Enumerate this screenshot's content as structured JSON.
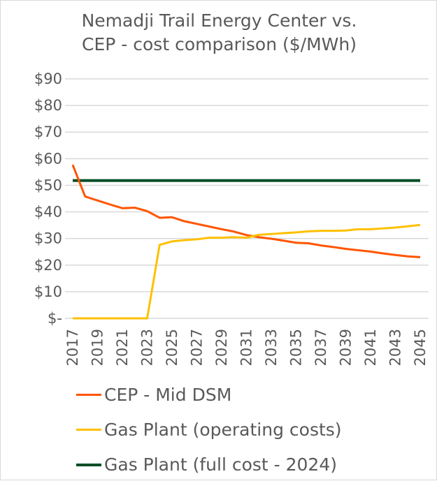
{
  "chart_data": {
    "type": "line",
    "title": "Nemadji Trail Energy Center vs. CEP - cost comparison ($/MWh)",
    "title_lines": [
      "Nemadji Trail Energy Center vs.",
      "CEP - cost comparison ($/MWh)"
    ],
    "xlabel": "",
    "ylabel": "",
    "ylim": [
      0,
      90
    ],
    "yticks": [
      "$-",
      "$10",
      "$20",
      "$30",
      "$40",
      "$50",
      "$60",
      "$70",
      "$80",
      "$90"
    ],
    "x": [
      2017,
      2018,
      2019,
      2020,
      2021,
      2022,
      2023,
      2024,
      2025,
      2026,
      2027,
      2028,
      2029,
      2030,
      2031,
      2032,
      2033,
      2034,
      2035,
      2036,
      2037,
      2038,
      2039,
      2040,
      2041,
      2042,
      2043,
      2044,
      2045
    ],
    "xtick_labels": [
      "2017",
      "2019",
      "2021",
      "2023",
      "2025",
      "2027",
      "2029",
      "2031",
      "2033",
      "2035",
      "2037",
      "2039",
      "2041",
      "2043",
      "2045"
    ],
    "grid": true,
    "legend_placement": "bottom",
    "series": [
      {
        "name": "CEP - Mid DSM",
        "color": "#FF5500",
        "values": [
          57.7,
          45.8,
          44.3,
          42.8,
          41.4,
          41.6,
          40.3,
          37.8,
          38.0,
          36.5,
          35.5,
          34.5,
          33.5,
          32.6,
          31.3,
          30.5,
          29.9,
          29.2,
          28.4,
          28.2,
          27.4,
          26.8,
          26.1,
          25.6,
          25.1,
          24.4,
          23.8,
          23.3,
          23.0
        ]
      },
      {
        "name": "Gas Plant (operating costs)",
        "color": "#FFC000",
        "values": [
          0,
          0,
          0,
          0,
          0,
          0,
          0,
          27.6,
          28.9,
          29.4,
          29.7,
          30.3,
          30.3,
          30.5,
          30.3,
          31.4,
          31.7,
          32.0,
          32.3,
          32.7,
          32.9,
          32.9,
          33.0,
          33.5,
          33.5,
          33.8,
          34.1,
          34.6,
          35.1
        ]
      },
      {
        "name": "Gas Plant (full cost - 2024)",
        "color": "#004D26",
        "values": [
          51.8,
          51.8,
          51.8,
          51.8,
          51.8,
          51.8,
          51.8,
          51.8,
          51.8,
          51.8,
          51.8,
          51.8,
          51.8,
          51.8,
          51.8,
          51.8,
          51.8,
          51.8,
          51.8,
          51.8,
          51.8,
          51.8,
          51.8,
          51.8,
          51.8,
          51.8,
          51.8,
          51.8,
          51.8
        ]
      }
    ]
  }
}
